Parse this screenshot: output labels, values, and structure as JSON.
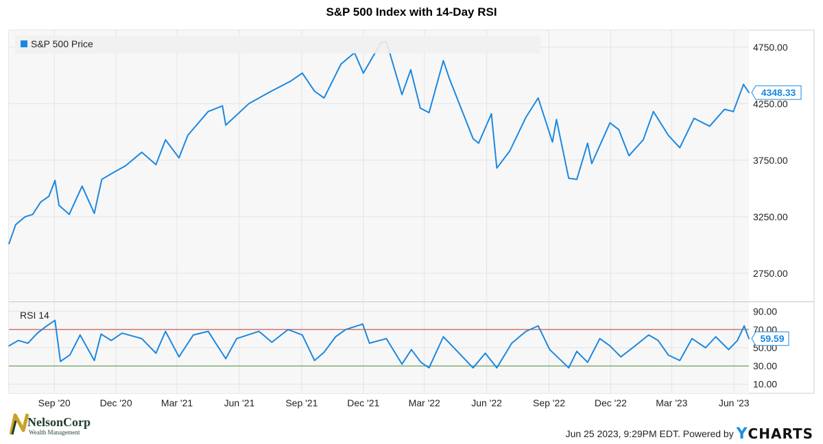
{
  "title": "S&P 500 Index with 14-Day RSI",
  "footer": {
    "timestamp": "Jun 25 2023, 9:29PM EDT.",
    "powered_by": "Powered by",
    "brand_y": "Y",
    "brand_rest": "CHARTS"
  },
  "logo": {
    "name": "NelsonCorp",
    "tagline": "Wealth Management"
  },
  "colors": {
    "series": "#1a87e0",
    "overbought": "#c0392b",
    "oversold": "#4a8b3a",
    "grid": "#e3e3e3",
    "plot_bg": "#f7f7f7"
  },
  "chart_data": [
    {
      "type": "line",
      "legend": "S&P 500 Price",
      "legend_position": "top-left",
      "grid": true,
      "ylim": [
        2500,
        4900
      ],
      "y_ticks": [
        "4750.00",
        "4250.00",
        "3750.00",
        "3250.00",
        "2750.00"
      ],
      "y_tick_values": [
        4750,
        4250,
        3750,
        3250,
        2750
      ],
      "last_value_label": "4348.33",
      "x_ticks": [
        "Sep '20",
        "Dec '20",
        "Mar '21",
        "Jun '21",
        "Sep '21",
        "Dec '21",
        "Mar '22",
        "Jun '22",
        "Sep '22",
        "Dec '22",
        "Mar '23",
        "Jun '23"
      ],
      "x_tick_dates": [
        "2020-09-01",
        "2020-12-01",
        "2021-03-01",
        "2021-06-01",
        "2021-09-01",
        "2021-12-01",
        "2022-03-01",
        "2022-06-01",
        "2022-09-01",
        "2022-12-01",
        "2023-03-01",
        "2023-06-01"
      ],
      "series": [
        {
          "x": [
            "2020-06-26",
            "2020-07-06",
            "2020-07-20",
            "2020-07-31",
            "2020-08-12",
            "2020-08-24",
            "2020-09-02",
            "2020-09-08",
            "2020-09-23",
            "2020-10-12",
            "2020-10-30",
            "2020-11-10",
            "2020-11-27",
            "2020-12-15",
            "2021-01-08",
            "2021-01-29",
            "2021-02-12",
            "2021-03-04",
            "2021-03-17",
            "2021-04-16",
            "2021-05-07",
            "2021-05-12",
            "2021-06-15",
            "2021-07-15",
            "2021-08-16",
            "2021-09-02",
            "2021-09-20",
            "2021-10-04",
            "2021-10-29",
            "2021-11-18",
            "2021-12-01",
            "2021-12-27",
            "2022-01-04",
            "2022-01-27",
            "2022-02-09",
            "2022-02-23",
            "2022-03-08",
            "2022-03-29",
            "2022-04-07",
            "2022-05-12",
            "2022-05-20",
            "2022-06-08",
            "2022-06-16",
            "2022-07-05",
            "2022-07-29",
            "2022-08-16",
            "2022-09-06",
            "2022-09-12",
            "2022-09-30",
            "2022-10-12",
            "2022-10-28",
            "2022-11-03",
            "2022-11-30",
            "2022-12-13",
            "2022-12-28",
            "2023-01-18",
            "2023-02-02",
            "2023-02-24",
            "2023-03-13",
            "2023-04-03",
            "2023-04-26",
            "2023-05-18",
            "2023-05-31",
            "2023-06-15",
            "2023-06-23"
          ],
          "values": [
            3010,
            3180,
            3250,
            3270,
            3380,
            3430,
            3570,
            3350,
            3270,
            3520,
            3280,
            3580,
            3640,
            3700,
            3820,
            3710,
            3930,
            3770,
            3970,
            4180,
            4230,
            4060,
            4250,
            4350,
            4450,
            4520,
            4360,
            4300,
            4600,
            4700,
            4520,
            4790,
            4800,
            4330,
            4550,
            4210,
            4170,
            4630,
            4470,
            3940,
            3900,
            4160,
            3680,
            3830,
            4130,
            4300,
            3910,
            4110,
            3590,
            3580,
            3900,
            3720,
            4080,
            4020,
            3790,
            3930,
            4180,
            3970,
            3860,
            4120,
            4050,
            4200,
            4180,
            4420,
            4348
          ]
        }
      ]
    },
    {
      "type": "line",
      "legend": "RSI 14",
      "legend_position": "top-left",
      "grid": true,
      "ylim": [
        0,
        100
      ],
      "y_ticks": [
        "90.00",
        "70.00",
        "50.00",
        "30.00",
        "10.00"
      ],
      "y_tick_values": [
        90,
        70,
        50,
        30,
        10
      ],
      "reference_lines": [
        70,
        30
      ],
      "last_value_label": "59.59",
      "series": [
        {
          "x": [
            "2020-06-26",
            "2020-07-10",
            "2020-07-24",
            "2020-08-07",
            "2020-08-21",
            "2020-09-02",
            "2020-09-10",
            "2020-09-24",
            "2020-10-09",
            "2020-10-30",
            "2020-11-09",
            "2020-11-24",
            "2020-12-10",
            "2021-01-08",
            "2021-01-29",
            "2021-02-12",
            "2021-03-04",
            "2021-03-25",
            "2021-04-16",
            "2021-05-12",
            "2021-05-28",
            "2021-06-30",
            "2021-07-19",
            "2021-08-12",
            "2021-09-02",
            "2021-09-20",
            "2021-10-04",
            "2021-10-21",
            "2021-11-05",
            "2021-11-30",
            "2021-12-10",
            "2022-01-04",
            "2022-01-27",
            "2022-02-10",
            "2022-02-24",
            "2022-03-08",
            "2022-03-29",
            "2022-04-11",
            "2022-05-12",
            "2022-05-30",
            "2022-06-16",
            "2022-07-08",
            "2022-07-29",
            "2022-08-16",
            "2022-09-02",
            "2022-09-30",
            "2022-10-12",
            "2022-10-28",
            "2022-11-15",
            "2022-11-30",
            "2022-12-16",
            "2023-01-06",
            "2023-01-26",
            "2023-02-09",
            "2023-02-24",
            "2023-03-13",
            "2023-03-31",
            "2023-04-20",
            "2023-05-05",
            "2023-05-24",
            "2023-06-06",
            "2023-06-16",
            "2023-06-23"
          ],
          "values": [
            52,
            58,
            55,
            66,
            74,
            80,
            35,
            42,
            64,
            36,
            65,
            58,
            66,
            60,
            44,
            68,
            40,
            64,
            68,
            38,
            60,
            68,
            56,
            70,
            64,
            36,
            45,
            62,
            70,
            76,
            55,
            60,
            32,
            48,
            34,
            28,
            62,
            52,
            28,
            44,
            28,
            55,
            68,
            74,
            48,
            28,
            46,
            34,
            60,
            52,
            40,
            52,
            64,
            58,
            42,
            36,
            60,
            50,
            62,
            48,
            58,
            74,
            60
          ]
        }
      ]
    }
  ]
}
